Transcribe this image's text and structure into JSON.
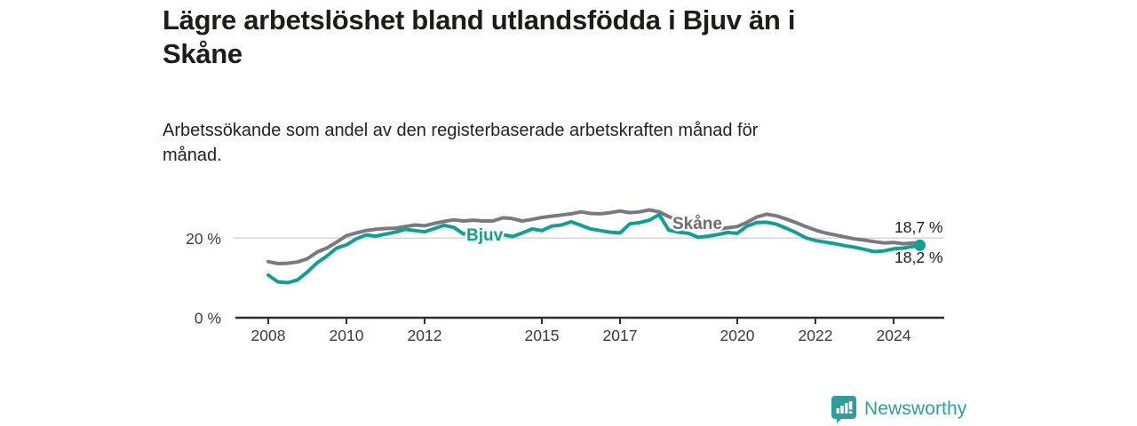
{
  "header": {
    "title_lines": [
      "Lägre arbetslöshet bland utlandsfödda i Bjuv än i",
      "Skåne"
    ],
    "subtitle_lines": [
      "Arbetssökande som andel av den registerbaserade arbetskraften månad för",
      "månad."
    ]
  },
  "chart_data": {
    "type": "line",
    "title": "Lägre arbetslöshet bland utlandsfödda i Bjuv än i Skåne",
    "subtitle": "Arbetssökande som andel av den registerbaserade arbetskraften månad för månad.",
    "y_unit": "%",
    "grid": "horizontal-20-only",
    "legend_position": "inline-labels-on-lines",
    "ylim": [
      0,
      30
    ],
    "xlim": [
      2007.2,
      2025.3
    ],
    "x_ticks": [
      {
        "value": 2008,
        "label": "2008"
      },
      {
        "value": 2010,
        "label": "2010"
      },
      {
        "value": 2012,
        "label": "2012"
      },
      {
        "value": 2015,
        "label": "2015"
      },
      {
        "value": 2017,
        "label": "2017"
      },
      {
        "value": 2020,
        "label": "2020"
      },
      {
        "value": 2022,
        "label": "2022"
      },
      {
        "value": 2024,
        "label": "2024"
      }
    ],
    "y_ticks": [
      {
        "value": 0,
        "label": "0 %"
      },
      {
        "value": 20,
        "label": "20 %"
      }
    ],
    "x": [
      2008.0,
      2008.25,
      2008.5,
      2008.75,
      2009.0,
      2009.25,
      2009.5,
      2009.75,
      2010.0,
      2010.25,
      2010.5,
      2010.75,
      2011.0,
      2011.25,
      2011.5,
      2011.75,
      2012.0,
      2012.25,
      2012.5,
      2012.75,
      2013.0,
      2013.25,
      2013.5,
      2013.75,
      2014.0,
      2014.25,
      2014.5,
      2014.75,
      2015.0,
      2015.25,
      2015.5,
      2015.75,
      2016.0,
      2016.25,
      2016.5,
      2016.75,
      2017.0,
      2017.25,
      2017.5,
      2017.75,
      2018.0,
      2018.25,
      2018.5,
      2018.75,
      2019.0,
      2019.25,
      2019.5,
      2019.75,
      2020.0,
      2020.25,
      2020.5,
      2020.75,
      2021.0,
      2021.25,
      2021.5,
      2021.75,
      2022.0,
      2022.25,
      2022.5,
      2022.75,
      2023.0,
      2023.25,
      2023.5,
      2023.75,
      2024.0,
      2024.25,
      2024.5,
      2024.67
    ],
    "series": [
      {
        "name": "Skåne",
        "color": "#7b7880",
        "end_label": "18,7 %",
        "end_value": 18.7,
        "end_dot": false,
        "values": [
          14.1,
          13.6,
          13.7,
          14.0,
          14.8,
          16.5,
          17.5,
          19.0,
          20.6,
          21.3,
          21.9,
          22.2,
          22.4,
          22.5,
          22.9,
          23.3,
          23.1,
          23.7,
          24.2,
          24.6,
          24.3,
          24.5,
          24.3,
          24.3,
          25.1,
          24.9,
          24.3,
          24.7,
          25.2,
          25.5,
          25.8,
          26.1,
          26.6,
          26.2,
          26.1,
          26.4,
          26.8,
          26.4,
          26.6,
          27.1,
          26.6,
          25.4,
          24.4,
          23.8,
          22.8,
          22.3,
          22.2,
          22.6,
          22.9,
          24.0,
          25.3,
          26.0,
          25.6,
          24.8,
          23.9,
          22.9,
          22.0,
          21.3,
          20.8,
          20.3,
          19.8,
          19.5,
          19.1,
          18.8,
          18.9,
          18.6,
          18.8,
          18.7
        ]
      },
      {
        "name": "Bjuv",
        "color": "#10a093",
        "end_label": "18,2 %",
        "end_value": 18.2,
        "end_dot": true,
        "values": [
          10.7,
          9.0,
          8.8,
          9.5,
          11.5,
          13.8,
          15.5,
          17.5,
          18.3,
          19.8,
          20.8,
          20.5,
          21.0,
          21.5,
          22.2,
          21.9,
          21.6,
          22.4,
          23.2,
          22.7,
          21.0,
          22.3,
          22.0,
          21.3,
          20.9,
          20.4,
          21.3,
          22.3,
          21.9,
          23.0,
          23.3,
          24.1,
          23.2,
          22.3,
          21.9,
          21.5,
          21.3,
          23.6,
          23.9,
          24.5,
          25.9,
          22.0,
          21.5,
          21.2,
          20.2,
          20.5,
          20.9,
          21.4,
          21.2,
          23.0,
          23.9,
          24.0,
          23.5,
          22.5,
          21.4,
          20.1,
          19.4,
          19.0,
          18.6,
          18.1,
          17.7,
          17.2,
          16.6,
          16.8,
          17.3,
          17.5,
          17.9,
          18.2
        ]
      }
    ]
  },
  "footer": {
    "brand": "Newsworthy",
    "brand_color": "#2f9e9b",
    "logo_icon": "bar-chart-speech-bubble-icon"
  }
}
